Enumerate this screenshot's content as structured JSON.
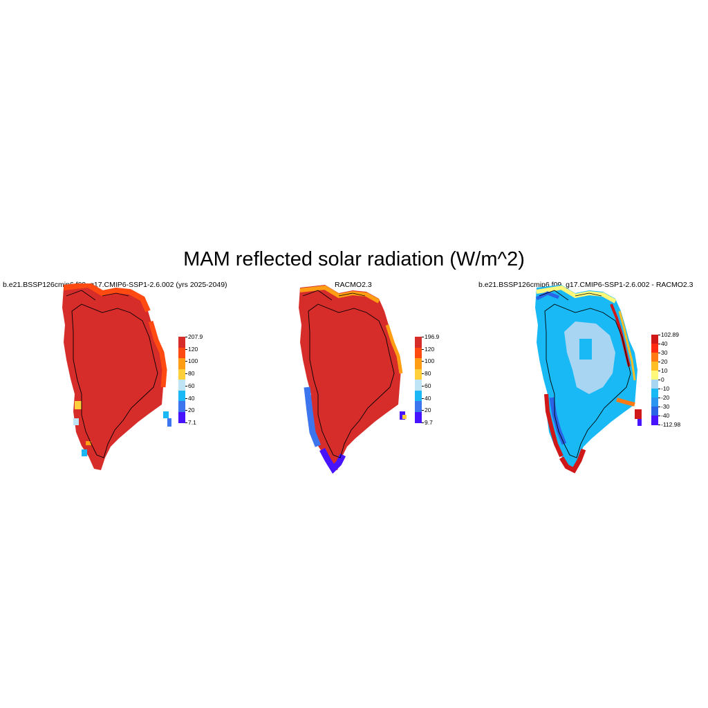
{
  "figure": {
    "title": "MAM reflected solar radiation (W/m^2)"
  },
  "panels": [
    {
      "title": "b.e21.BSSP126cmip6.f09_g17.CMIP6-SSP1-2.6.002 (yrs 2025-2049)",
      "colorbar": {
        "labels": [
          "207.9",
          "120",
          "100",
          "80",
          "60",
          "40",
          "20",
          "7.1"
        ],
        "colors": [
          "#d62d2a",
          "#ff4a12",
          "#ff9e14",
          "#ffd03c",
          "#bfe4f5",
          "#1cb8f5",
          "#3d75ee",
          "#4814ff"
        ]
      }
    },
    {
      "title": "RACMO2.3",
      "colorbar": {
        "labels": [
          "196.9",
          "120",
          "100",
          "80",
          "60",
          "40",
          "20",
          "9.7"
        ],
        "colors": [
          "#d62d2a",
          "#ff4a12",
          "#ff9e14",
          "#ffd03c",
          "#bfe4f5",
          "#1cb8f5",
          "#3d75ee",
          "#4814ff"
        ]
      }
    },
    {
      "title": "b.e21.BSSP126cmip6.f09_g17.CMIP6-SSP1-2.6.002 - RACMO2.3",
      "colorbar": {
        "labels": [
          "102.89",
          "40",
          "30",
          "20",
          "10",
          "0",
          "-10",
          "-20",
          "-30",
          "-40",
          "-112.98"
        ],
        "colors": [
          "#d01818",
          "#ff2a12",
          "#ff7a12",
          "#ffbf24",
          "#fff87a",
          "#a8d6f2",
          "#19b9f6",
          "#2b96f0",
          "#2a64e6",
          "#4814ff"
        ]
      }
    }
  ]
}
